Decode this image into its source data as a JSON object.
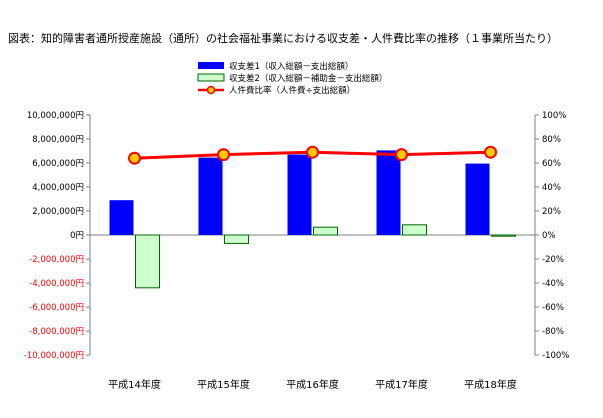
{
  "title": "図表：知的障害者通所授産施設（通所）の社会福祉事業における収支差・人件費比率の推移（１事業所当たり）",
  "chart_data": {
    "type": "bar",
    "categories": [
      "平成14年度",
      "平成15年度",
      "平成16年度",
      "平成17年度",
      "平成18年度"
    ],
    "series": [
      {
        "name": "収支差1（収入総額－支出総額）",
        "kind": "bar",
        "axis": "left",
        "color": "#0000ff",
        "values": [
          2900000,
          6450000,
          6700000,
          7050000,
          5950000
        ]
      },
      {
        "name": "収支差2（収入総額－補助金－支出総額）",
        "kind": "bar",
        "axis": "left",
        "color": "#ccffcc",
        "stroke": "#006600",
        "values": [
          -4400000,
          -700000,
          650000,
          850000,
          -50000
        ]
      },
      {
        "name": "人件費比率（人件費÷支出総額）",
        "kind": "line",
        "axis": "right",
        "color": "#ff0000",
        "marker_color": "#ffcc00",
        "values": [
          64,
          67,
          69,
          67,
          69
        ]
      }
    ],
    "y_left": {
      "min": -10000000,
      "max": 10000000,
      "step": 2000000,
      "tick_labels": [
        "-10,000,000円",
        "-8,000,000円",
        "-6,000,000円",
        "-4,000,000円",
        "-2,000,000円",
        "0円",
        "2,000,000円",
        "4,000,000円",
        "6,000,000円",
        "8,000,000円",
        "10,000,000円"
      ],
      "negative_color": "#ff0000"
    },
    "y_right": {
      "min": -100,
      "max": 100,
      "step": 20,
      "tick_labels": [
        "-100%",
        "-80%",
        "-60%",
        "-40%",
        "-20%",
        "0%",
        "20%",
        "40%",
        "60%",
        "80%",
        "100%"
      ]
    },
    "grid": false,
    "legend_position": "top-center"
  }
}
